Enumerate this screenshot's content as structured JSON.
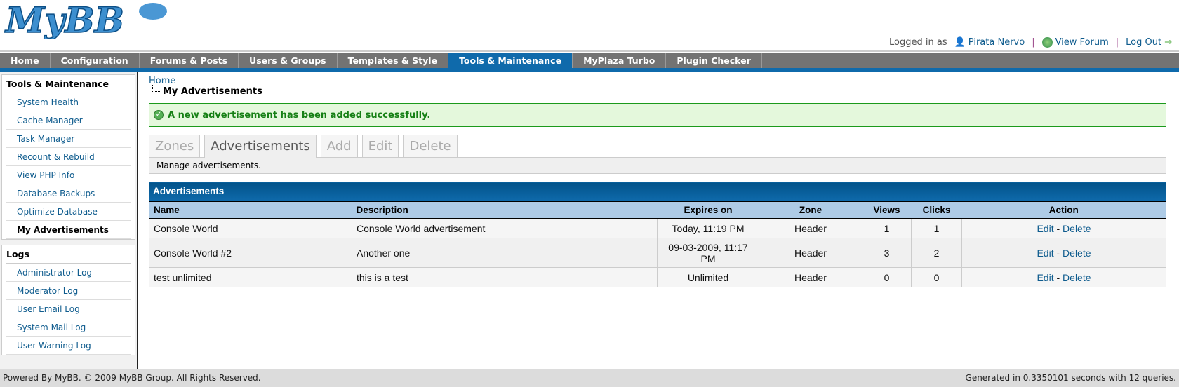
{
  "logo": {
    "text": "MyBB"
  },
  "userbar": {
    "logged_in_as": "Logged in as",
    "username": "Pirata Nervo",
    "view_forum": "View Forum",
    "log_out": "Log Out"
  },
  "nav": [
    {
      "label": "Home"
    },
    {
      "label": "Configuration"
    },
    {
      "label": "Forums & Posts"
    },
    {
      "label": "Users & Groups"
    },
    {
      "label": "Templates & Style"
    },
    {
      "label": "Tools & Maintenance",
      "active": true
    },
    {
      "label": "MyPlaza Turbo"
    },
    {
      "label": "Plugin Checker"
    }
  ],
  "sidebar": {
    "tools": {
      "title": "Tools & Maintenance",
      "items": [
        "System Health",
        "Cache Manager",
        "Task Manager",
        "Recount & Rebuild",
        "View PHP Info",
        "Database Backups",
        "Optimize Database",
        "My Advertisements"
      ]
    },
    "logs": {
      "title": "Logs",
      "items": [
        "Administrator Log",
        "Moderator Log",
        "User Email Log",
        "System Mail Log",
        "User Warning Log"
      ]
    }
  },
  "breadcrumb": {
    "home": "Home",
    "current": "My Advertisements"
  },
  "success": "A new advertisement has been added successfully.",
  "tabs": [
    "Zones",
    "Advertisements",
    "Add",
    "Edit",
    "Delete"
  ],
  "tab_description": "Manage advertisements.",
  "table": {
    "title": "Advertisements",
    "columns": [
      "Name",
      "Description",
      "Expires on",
      "Zone",
      "Views",
      "Clicks",
      "Action"
    ],
    "rows": [
      {
        "name": "Console World",
        "description": "Console World advertisement",
        "expires": "Today, 11:19 PM",
        "zone": "Header",
        "views": "1",
        "clicks": "1"
      },
      {
        "name": "Console World #2",
        "description": "Another one",
        "expires": "09-03-2009, 11:17 PM",
        "zone": "Header",
        "views": "3",
        "clicks": "2"
      },
      {
        "name": "test unlimited",
        "description": "this is a test",
        "expires": "Unlimited",
        "zone": "Header",
        "views": "0",
        "clicks": "0"
      }
    ],
    "edit": "Edit",
    "sep": "-",
    "delete": "Delete"
  },
  "footer": {
    "left": "Powered By MyBB. © 2009 MyBB Group. All Rights Reserved.",
    "right": "Generated in 0.3350101 seconds with 12 queries."
  },
  "colors": {
    "accent": "#0f6aab",
    "nav": "#737373",
    "success_bg": "#e4f8dc"
  }
}
